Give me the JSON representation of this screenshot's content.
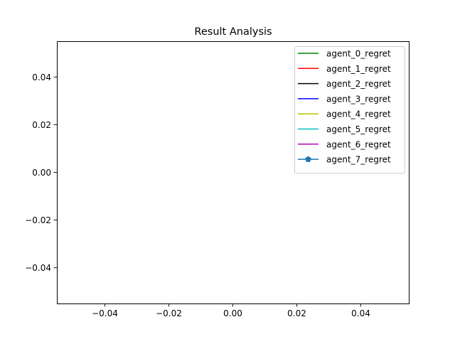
{
  "chart_data": {
    "type": "line",
    "title": "Result Analysis",
    "xlabel": "",
    "ylabel": "",
    "xlim": [
      -0.055,
      0.055
    ],
    "ylim": [
      -0.055,
      0.055
    ],
    "x_ticks": [
      -0.04,
      -0.02,
      0.0,
      0.02,
      0.04
    ],
    "x_tick_labels": [
      "−0.04",
      "−0.02",
      "0.00",
      "0.02",
      "0.04"
    ],
    "y_ticks": [
      0.04,
      0.02,
      0.0,
      -0.02,
      -0.04
    ],
    "y_tick_labels": [
      "0.04",
      "0.02",
      "0.00",
      "−0.02",
      "−0.04"
    ],
    "grid": false,
    "legend_position": "top-right",
    "series": [
      {
        "name": "agent_0_regret",
        "color": "#008000",
        "marker": "none",
        "x": [],
        "values": []
      },
      {
        "name": "agent_1_regret",
        "color": "#ff0000",
        "marker": "none",
        "x": [],
        "values": []
      },
      {
        "name": "agent_2_regret",
        "color": "#000000",
        "marker": "none",
        "x": [],
        "values": []
      },
      {
        "name": "agent_3_regret",
        "color": "#0000ff",
        "marker": "none",
        "x": [],
        "values": []
      },
      {
        "name": "agent_4_regret",
        "color": "#bfbf00",
        "marker": "none",
        "x": [],
        "values": []
      },
      {
        "name": "agent_5_regret",
        "color": "#00bfbf",
        "marker": "none",
        "x": [],
        "values": []
      },
      {
        "name": "agent_6_regret",
        "color": "#bf00bf",
        "marker": "none",
        "x": [],
        "values": []
      },
      {
        "name": "agent_7_regret",
        "color": "#1f77b4",
        "marker": "pentagon",
        "x": [],
        "values": []
      }
    ]
  }
}
